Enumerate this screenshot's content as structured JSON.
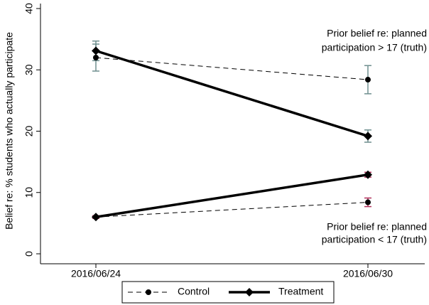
{
  "chart_data": {
    "type": "line",
    "y_label": "Belief re: % students who actually participate",
    "categories": [
      "2016/06/24",
      "2016/06/30"
    ],
    "ylim": [
      0,
      40
    ],
    "yticks": [
      0,
      10,
      20,
      30,
      40
    ],
    "series": [
      {
        "name": "Control",
        "color": "#000000",
        "dashed": true,
        "marker": "circle",
        "groups": [
          {
            "values": [
              32.0,
              28.4
            ],
            "errors": [
              2.2,
              2.3
            ],
            "error_color": "#6f8f8f"
          },
          {
            "values": [
              6.0,
              8.4
            ],
            "errors": [
              0.2,
              0.7
            ],
            "error_color": "#b0305a"
          }
        ]
      },
      {
        "name": "Treatment",
        "color": "#000000",
        "dashed": false,
        "marker": "diamond",
        "groups": [
          {
            "values": [
              33.1,
              19.2
            ],
            "errors": [
              1.6,
              1.0
            ],
            "error_color": "#6f8f8f"
          },
          {
            "values": [
              6.0,
              12.9
            ],
            "errors": [
              0.2,
              0.4
            ],
            "error_color": "#b0305a"
          }
        ]
      }
    ],
    "annotations": [
      {
        "lines": [
          "Prior belief re: planned",
          "participation > 17 (truth)"
        ]
      },
      {
        "lines": [
          "Prior belief re: planned",
          "participation < 17 (truth)"
        ]
      }
    ]
  }
}
